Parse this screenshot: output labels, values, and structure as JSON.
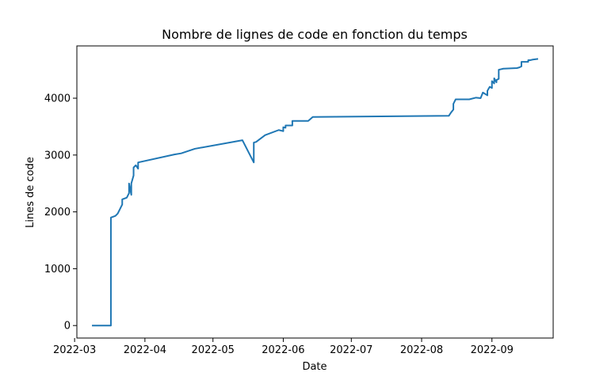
{
  "chart_data": {
    "type": "line",
    "title": "Nombre de lignes de code en fonction du temps",
    "xlabel": "Date",
    "ylabel": "Lines de code",
    "xlim": [
      "2022-03-02",
      "2022-09-28"
    ],
    "ylim": [
      -220,
      4920
    ],
    "x_ticks": [
      "2022-03-01",
      "2022-04-01",
      "2022-05-01",
      "2022-06-01",
      "2022-07-01",
      "2022-08-01",
      "2022-09-01"
    ],
    "x_tick_labels": [
      "2022-03",
      "2022-04",
      "2022-05",
      "2022-06",
      "2022-07",
      "2022-08",
      "2022-09"
    ],
    "y_ticks": [
      0,
      1000,
      2000,
      3000,
      4000
    ],
    "y_tick_labels": [
      "0",
      "1000",
      "2000",
      "3000",
      "4000"
    ],
    "grid": false,
    "color": "#1f77b4",
    "series": [
      {
        "points": [
          [
            "2022-03-09",
            0
          ],
          [
            "2022-03-17",
            0
          ],
          [
            "2022-03-17",
            1600
          ],
          [
            "2022-03-17",
            1900
          ],
          [
            "2022-03-19",
            1930
          ],
          [
            "2022-03-20",
            1970
          ],
          [
            "2022-03-22",
            2130
          ],
          [
            "2022-03-22",
            2220
          ],
          [
            "2022-03-24",
            2250
          ],
          [
            "2022-03-25",
            2330
          ],
          [
            "2022-03-25",
            2360
          ],
          [
            "2022-03-25",
            2500
          ],
          [
            "2022-03-26",
            2300
          ],
          [
            "2022-03-26",
            2500
          ],
          [
            "2022-03-27",
            2640
          ],
          [
            "2022-03-27",
            2780
          ],
          [
            "2022-03-28",
            2820
          ],
          [
            "2022-03-29",
            2760
          ],
          [
            "2022-03-29",
            2870
          ],
          [
            "2022-04-14",
            3010
          ],
          [
            "2022-04-17",
            3030
          ],
          [
            "2022-04-23",
            3110
          ],
          [
            "2022-05-14",
            3260
          ],
          [
            "2022-05-19",
            2870
          ],
          [
            "2022-05-19",
            3220
          ],
          [
            "2022-05-20",
            3230
          ],
          [
            "2022-05-24",
            3350
          ],
          [
            "2022-05-30",
            3440
          ],
          [
            "2022-06-01",
            3420
          ],
          [
            "2022-06-01",
            3490
          ],
          [
            "2022-06-02",
            3480
          ],
          [
            "2022-06-02",
            3520
          ],
          [
            "2022-06-05",
            3520
          ],
          [
            "2022-06-05",
            3600
          ],
          [
            "2022-06-12",
            3600
          ],
          [
            "2022-06-14",
            3670
          ],
          [
            "2022-08-13",
            3690
          ],
          [
            "2022-08-14",
            3750
          ],
          [
            "2022-08-15",
            3800
          ],
          [
            "2022-08-15",
            3860
          ],
          [
            "2022-08-15",
            3900
          ],
          [
            "2022-08-16",
            3980
          ],
          [
            "2022-08-22",
            3980
          ],
          [
            "2022-08-25",
            4010
          ],
          [
            "2022-08-27",
            4000
          ],
          [
            "2022-08-28",
            4100
          ],
          [
            "2022-08-30",
            4050
          ],
          [
            "2022-08-30",
            4130
          ],
          [
            "2022-08-31",
            4200
          ],
          [
            "2022-09-01",
            4180
          ],
          [
            "2022-09-01",
            4300
          ],
          [
            "2022-09-02",
            4260
          ],
          [
            "2022-09-02",
            4350
          ],
          [
            "2022-09-03",
            4280
          ],
          [
            "2022-09-03",
            4320
          ],
          [
            "2022-09-04",
            4340
          ],
          [
            "2022-09-04",
            4500
          ],
          [
            "2022-09-05",
            4510
          ],
          [
            "2022-09-06",
            4520
          ],
          [
            "2022-09-12",
            4530
          ],
          [
            "2022-09-13",
            4540
          ],
          [
            "2022-09-14",
            4560
          ],
          [
            "2022-09-14",
            4640
          ],
          [
            "2022-09-17",
            4640
          ],
          [
            "2022-09-17",
            4670
          ],
          [
            "2022-09-18",
            4670
          ],
          [
            "2022-09-19",
            4680
          ],
          [
            "2022-09-21",
            4690
          ]
        ]
      }
    ]
  }
}
